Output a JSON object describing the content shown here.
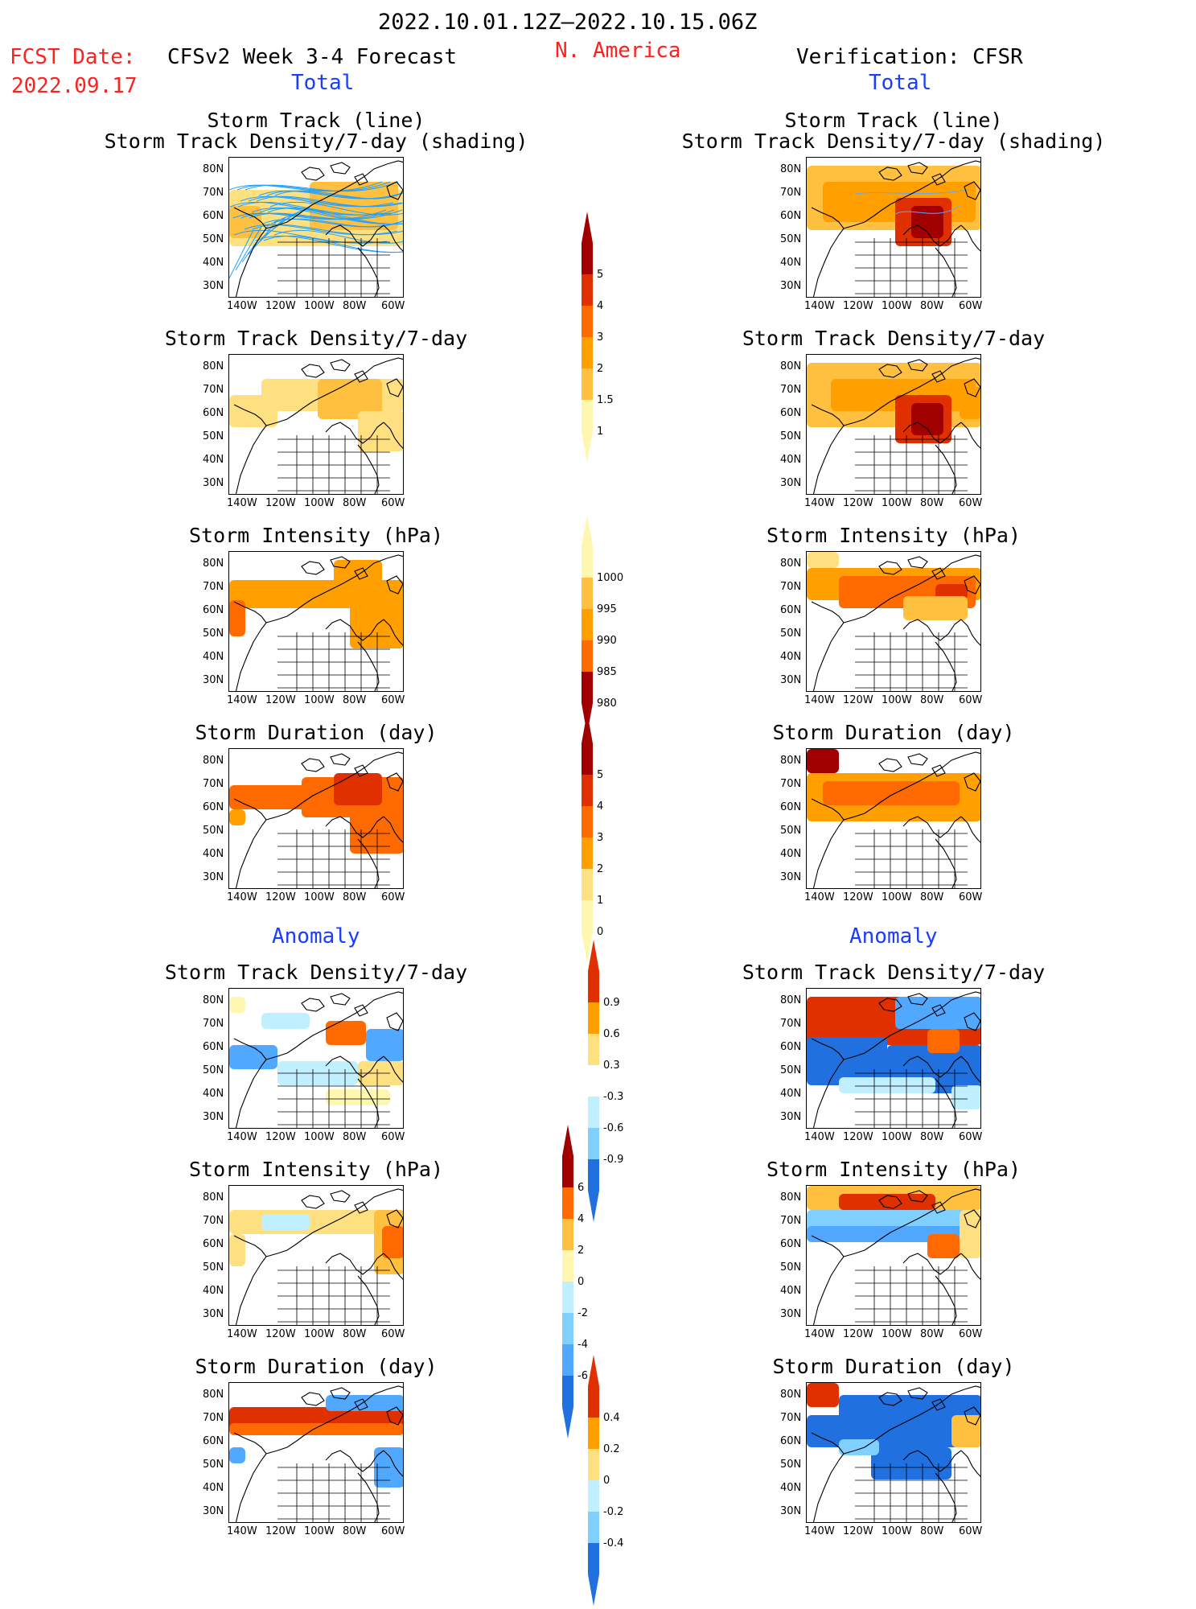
{
  "header": {
    "period": "2022.10.01.12Z–2022.10.15.06Z",
    "region": "N. America",
    "fcst_label": "FCST Date:",
    "fcst_date": "2022.09.17",
    "left_title": "CFSv2 Week 3-4 Forecast",
    "right_title": "Verification: CFSR",
    "total_left": "Total",
    "total_right": "Total",
    "anomaly_left": "Anomaly",
    "anomaly_right": "Anomaly"
  },
  "panel_titles": {
    "track_line": "Storm Track (line)",
    "track_shading": "Storm Track Density/7-day (shading)",
    "density": "Storm Track Density/7-day",
    "intensity": "Storm Intensity (hPa)",
    "duration": "Storm Duration (day)"
  },
  "axes": {
    "lat_labels": [
      "80N",
      "70N",
      "60N",
      "50N",
      "40N",
      "30N"
    ],
    "lon_labels": [
      "140W",
      "120W",
      "100W",
      "80W",
      "60W"
    ]
  },
  "colorbars": {
    "density_total": [
      "5",
      "4",
      "3",
      "2",
      "1.5",
      "1"
    ],
    "intensity_total": [
      "1000",
      "995",
      "990",
      "985",
      "980"
    ],
    "duration_total": [
      "5",
      "4",
      "3",
      "2",
      "1",
      "0"
    ],
    "density_anom": [
      "0.9",
      "0.6",
      "0.3",
      "-0.3",
      "-0.6",
      "-0.9"
    ],
    "intensity_anom": [
      "6",
      "4",
      "2",
      "0",
      "-2",
      "-4",
      "-6"
    ],
    "duration_anom": [
      "0.4",
      "0.2",
      "0",
      "-0.2",
      "-0.4"
    ]
  },
  "colors": {
    "title_red": "#ff2020",
    "label_blue": "#1a3cff",
    "track_line": "#1ea0ff",
    "warm": [
      "#fff7b0",
      "#ffe080",
      "#ffc040",
      "#ffa000",
      "#ff6a00",
      "#e03000",
      "#a00000"
    ],
    "cool": [
      "#c0f0ff",
      "#80d0ff",
      "#50a8ff",
      "#2070e0"
    ]
  }
}
